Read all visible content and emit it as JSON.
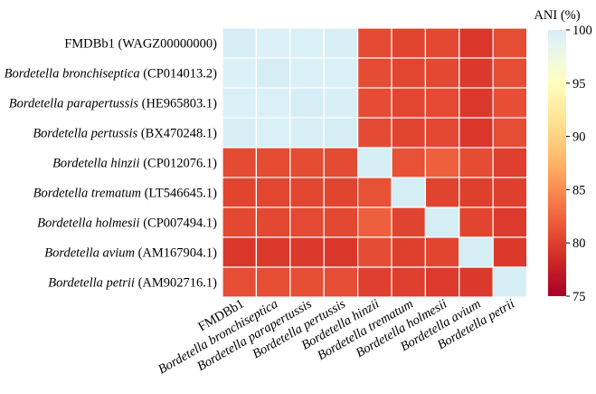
{
  "chart_data": {
    "type": "heatmap",
    "row_labels": [
      {
        "name": "FMDBb1",
        "id": "(WAGZ00000000)",
        "italic": false
      },
      {
        "name": "Bordetella bronchiseptica",
        "id": "(CP014013.2)",
        "italic": true
      },
      {
        "name": "Bordetella parapertussis",
        "id": "(HE965803.1)",
        "italic": true
      },
      {
        "name": "Bordetella pertussis",
        "id": "(BX470248.1)",
        "italic": true
      },
      {
        "name": "Bordetella hinzii",
        "id": "(CP012076.1)",
        "italic": true
      },
      {
        "name": "Bordetella trematum",
        "id": "(LT546645.1)",
        "italic": true
      },
      {
        "name": "Bordetella holmesii",
        "id": "(CP007494.1)",
        "italic": true
      },
      {
        "name": "Bordetella avium",
        "id": "(AM167904.1)",
        "italic": true
      },
      {
        "name": "Bordetella petrii",
        "id": "(AM902716.1)",
        "italic": true
      }
    ],
    "col_labels": [
      {
        "name": "FMDBb1",
        "italic": false
      },
      {
        "name": "Bordetella bronchiseptica",
        "italic": true
      },
      {
        "name": "Bordetella parapertussis",
        "italic": true
      },
      {
        "name": "Bordetella pertussis",
        "italic": true
      },
      {
        "name": "Bordetella hinzii",
        "italic": true
      },
      {
        "name": "Bordetella trematum",
        "italic": true
      },
      {
        "name": "Bordetella holmesii",
        "italic": true
      },
      {
        "name": "Bordetella avium",
        "italic": true
      },
      {
        "name": "Bordetella petrii",
        "italic": true
      }
    ],
    "values": [
      [
        100,
        99.5,
        99.7,
        99.8,
        80.8,
        80.4,
        80.6,
        79.5,
        81.0
      ],
      [
        99.5,
        100,
        99.6,
        99.7,
        80.9,
        80.5,
        80.6,
        79.6,
        81.0
      ],
      [
        99.7,
        99.6,
        100,
        99.8,
        80.9,
        80.5,
        80.7,
        79.6,
        81.1
      ],
      [
        99.8,
        99.7,
        99.8,
        100,
        80.8,
        80.4,
        80.6,
        79.5,
        81.0
      ],
      [
        80.8,
        80.9,
        80.9,
        80.8,
        100,
        81.2,
        82.2,
        80.9,
        80.0
      ],
      [
        80.4,
        80.5,
        80.5,
        80.4,
        81.2,
        100,
        80.3,
        80.1,
        80.0
      ],
      [
        80.6,
        80.6,
        80.7,
        80.6,
        82.2,
        80.3,
        100,
        80.4,
        79.7
      ],
      [
        79.5,
        79.6,
        79.6,
        79.5,
        80.9,
        80.1,
        80.4,
        100,
        79.6
      ],
      [
        81.0,
        81.0,
        81.1,
        81.0,
        80.0,
        80.0,
        79.7,
        79.6,
        100
      ]
    ],
    "colorbar": {
      "title": "ANI (%)",
      "min": 75,
      "max": 100,
      "ticks": [
        75,
        80,
        85,
        90,
        95,
        100
      ],
      "colormap": "RdYlBu"
    },
    "grid_line_color": "#ffffff"
  }
}
